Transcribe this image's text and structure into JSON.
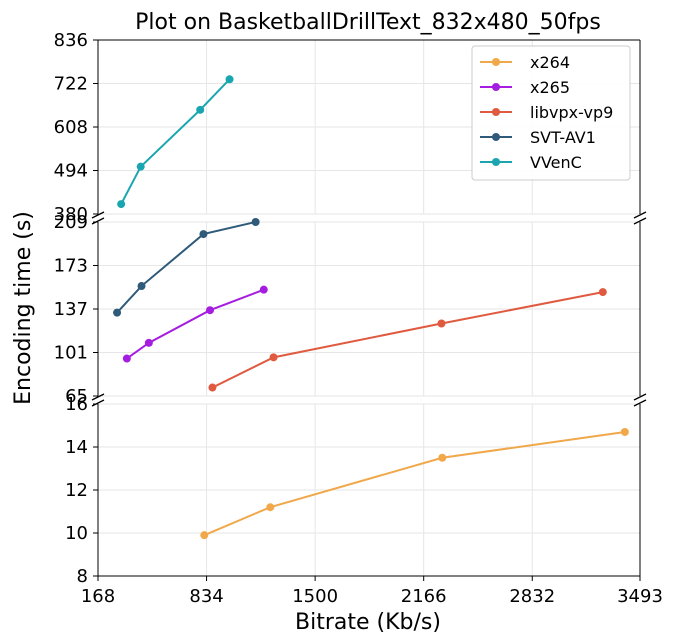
{
  "chart_data": {
    "type": "line",
    "title": "Plot on BasketballDrillText_832x480_50fps",
    "xlabel": "Bitrate (Kb/s)",
    "ylabel": "Encoding time (s)",
    "xlim": [
      168,
      3493
    ],
    "xticks": [
      "168",
      "834",
      "1500",
      "2166",
      "2832",
      "3493"
    ],
    "broken_y_axis": true,
    "panels": [
      {
        "name": "top",
        "ylim": [
          380,
          836
        ],
        "yticks": [
          "380",
          "494",
          "608",
          "722",
          "836"
        ]
      },
      {
        "name": "middle",
        "ylim": [
          65,
          209
        ],
        "yticks": [
          "65",
          "101",
          "137",
          "173",
          "209"
        ]
      },
      {
        "name": "bottom",
        "ylim": [
          8,
          16
        ],
        "yticks": [
          "8",
          "10",
          "12",
          "14",
          "16"
        ]
      }
    ],
    "grid": true,
    "legend": "top-right",
    "series": [
      {
        "name": "x264",
        "color": "#f0a84a",
        "panel": "bottom",
        "x": [
          820,
          1225,
          2280,
          3400
        ],
        "y": [
          9.9,
          11.2,
          13.5,
          14.7
        ]
      },
      {
        "name": "x265",
        "color": "#a41de0",
        "panel": "middle",
        "x": [
          345,
          480,
          855,
          1185
        ],
        "y": [
          96,
          109,
          136,
          153
        ]
      },
      {
        "name": "libvpx-vp9",
        "color": "#e05a40",
        "panel": "middle",
        "x": [
          870,
          1245,
          2275,
          3265
        ],
        "y": [
          72,
          97,
          125,
          151
        ]
      },
      {
        "name": "SVT-AV1",
        "color": "#2f5a7a",
        "panel": "middle",
        "x": [
          285,
          435,
          815,
          1135
        ],
        "y": [
          134,
          156,
          199,
          209
        ]
      },
      {
        "name": "VVenC",
        "color": "#1aa6b0",
        "panel": "top",
        "x": [
          310,
          430,
          795,
          975
        ],
        "y": [
          406,
          504,
          653,
          733
        ]
      }
    ]
  }
}
